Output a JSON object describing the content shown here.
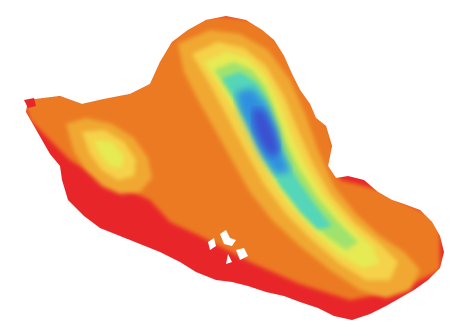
{
  "map": {
    "colors": {
      "background": "#ffffff",
      "lowest": "#e8262a",
      "low": "#ec7a22",
      "mid_low": "#f0a833",
      "mid": "#f5d24a",
      "mid_high": "#e6ea52",
      "high": "#9fe36d",
      "higher": "#55d6b8",
      "highest": "#2f8fe0",
      "peak": "#3a4fd0"
    }
  }
}
